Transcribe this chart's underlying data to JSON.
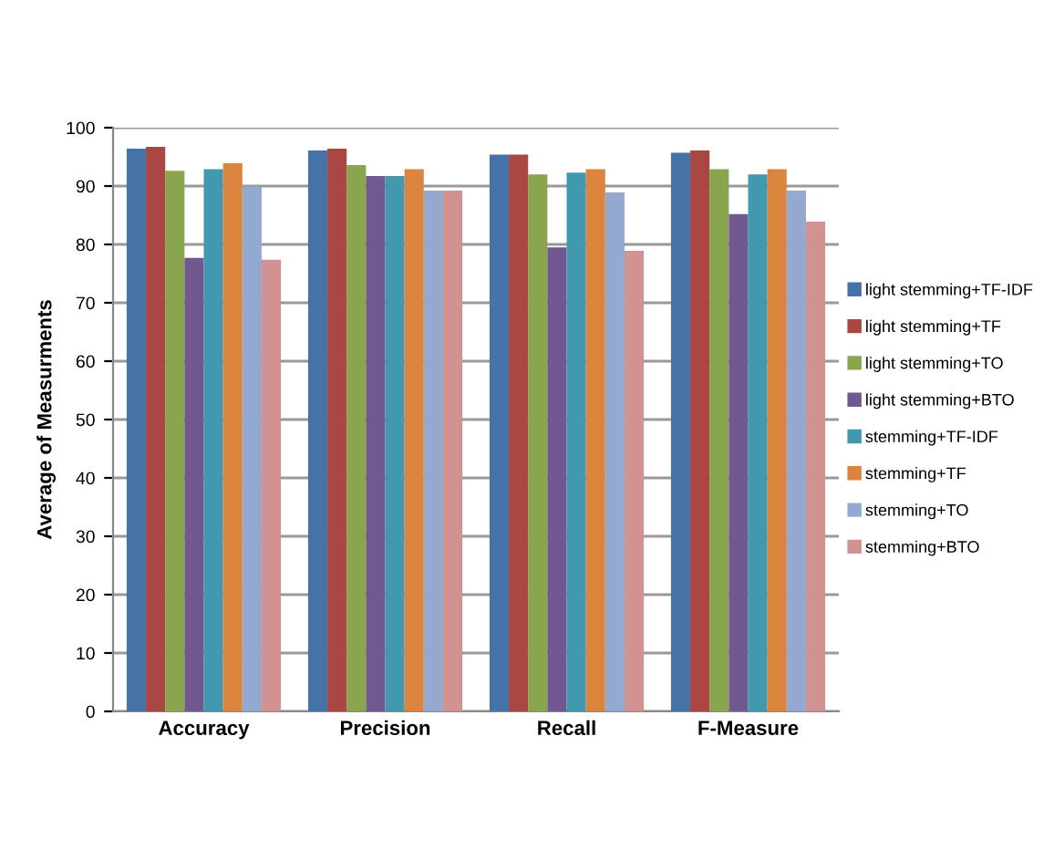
{
  "chart_data": {
    "type": "bar",
    "ylabel": "Average of Measurments",
    "categories": [
      "Accuracy",
      "Precision",
      "Recall",
      "F-Measure"
    ],
    "series": [
      {
        "name": "light stemming+TF-IDF",
        "color": "#4572a7",
        "values": [
          96.4,
          96.1,
          95.4,
          95.7
        ]
      },
      {
        "name": "light stemming+TF",
        "color": "#aa4643",
        "values": [
          96.7,
          96.4,
          95.4,
          96.1
        ]
      },
      {
        "name": "light stemming+TO",
        "color": "#89a54e",
        "values": [
          92.6,
          93.6,
          92.0,
          92.9
        ]
      },
      {
        "name": "light stemming+BTO",
        "color": "#71588f",
        "values": [
          77.7,
          91.7,
          79.5,
          85.2
        ]
      },
      {
        "name": "stemming+TF-IDF",
        "color": "#4198af",
        "values": [
          92.9,
          91.7,
          92.3,
          92.0
        ]
      },
      {
        "name": "stemming+TF",
        "color": "#db843d",
        "values": [
          93.9,
          92.9,
          92.9,
          92.9
        ]
      },
      {
        "name": "stemming+TO",
        "color": "#93a9cf",
        "values": [
          89.9,
          89.2,
          88.9,
          89.2
        ]
      },
      {
        "name": "stemming+BTO",
        "color": "#d19392",
        "values": [
          77.4,
          89.2,
          78.9,
          83.9
        ]
      }
    ],
    "ylim": [
      0,
      100
    ],
    "yticks": [
      0,
      10,
      20,
      30,
      40,
      50,
      60,
      70,
      80,
      90,
      100
    ],
    "grid": "y",
    "legend": "right"
  }
}
